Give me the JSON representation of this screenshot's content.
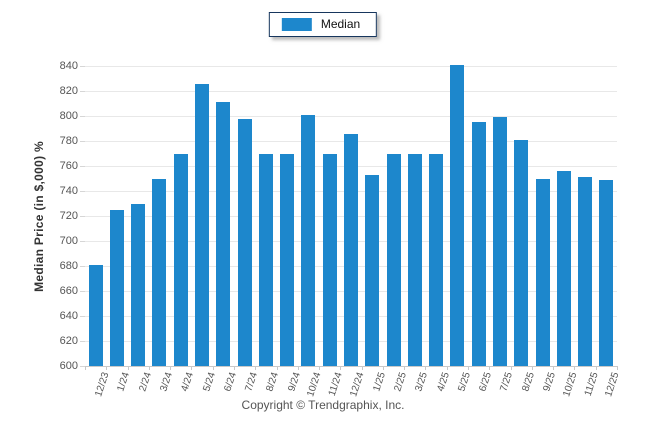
{
  "legend": {
    "label": "Median"
  },
  "footer": {
    "copyright": "Copyright © Trendgraphix, Inc."
  },
  "colors": {
    "bar": "#1d87cc",
    "legend_border": "#17365d",
    "gridline": "#e8e8e8",
    "axis_line": "#c9c9c9",
    "tick_text": "#555555",
    "ylabel_text": "#333333"
  },
  "chart_data": {
    "type": "bar",
    "title": "",
    "xlabel": "",
    "ylabel": "Median Price (in $,000) %",
    "categories": [
      "12/23",
      "1/24",
      "2/24",
      "3/24",
      "4/24",
      "5/24",
      "6/24",
      "7/24",
      "8/24",
      "9/24",
      "10/24",
      "11/24",
      "12/24",
      "1/25",
      "2/25",
      "3/25",
      "4/25",
      "5/25",
      "6/25",
      "7/25",
      "8/25",
      "9/25",
      "10/25",
      "11/25",
      "12/25"
    ],
    "series": [
      {
        "name": "Median",
        "values": [
          681,
          725,
          730,
          750,
          770,
          826,
          811,
          798,
          770,
          770,
          801,
          770,
          786,
          753,
          770,
          770,
          770,
          841,
          795,
          799,
          781,
          750,
          756,
          751,
          749
        ]
      }
    ],
    "ylim": [
      600,
      840
    ],
    "ytick_step": 20,
    "grid": true,
    "legend_entries": [
      "Median"
    ],
    "legend_position": "top-center"
  }
}
